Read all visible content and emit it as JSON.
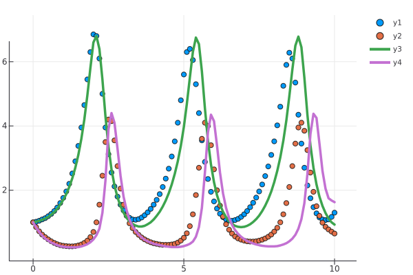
{
  "chart_data": {
    "type": "line",
    "title": "",
    "xlabel": "",
    "ylabel": "",
    "grid": true,
    "legend_position": "outside-right-top",
    "xlim": [
      -0.79,
      10.73
    ],
    "ylim": [
      -0.19,
      7.45
    ],
    "xticks": {
      "values": [
        0,
        5,
        10
      ],
      "labels": [
        "0",
        "5",
        "10"
      ]
    },
    "yticks": {
      "values": [
        2,
        4,
        6
      ],
      "labels": [
        "2",
        "4",
        "6"
      ]
    },
    "x": [
      0.0,
      0.1,
      0.2,
      0.3,
      0.4,
      0.5,
      0.6,
      0.7,
      0.8,
      0.9,
      1.0,
      1.1,
      1.2,
      1.3,
      1.4,
      1.5,
      1.6,
      1.7,
      1.8,
      1.9,
      2.0,
      2.1,
      2.2,
      2.3,
      2.4,
      2.5,
      2.6,
      2.7,
      2.8,
      2.9,
      3.0,
      3.1,
      3.2,
      3.3,
      3.4,
      3.5,
      3.6,
      3.7,
      3.8,
      3.9,
      4.0,
      4.1,
      4.2,
      4.3,
      4.4,
      4.5,
      4.6,
      4.7,
      4.8,
      4.9,
      5.0,
      5.1,
      5.2,
      5.3,
      5.4,
      5.5,
      5.6,
      5.7,
      5.8,
      5.9,
      6.0,
      6.1,
      6.2,
      6.3,
      6.4,
      6.5,
      6.6,
      6.7,
      6.8,
      6.9,
      7.0,
      7.1,
      7.2,
      7.3,
      7.4,
      7.5,
      7.6,
      7.7,
      7.8,
      7.9,
      8.0,
      8.1,
      8.2,
      8.3,
      8.4,
      8.5,
      8.6,
      8.7,
      8.8,
      8.9,
      9.0,
      9.1,
      9.2,
      9.3,
      9.4,
      9.5,
      9.6,
      9.7,
      9.8,
      9.9,
      10.0
    ],
    "series": [
      {
        "name": "y1",
        "mode": "markers",
        "color": "#009AFA",
        "marker_stroke": "#101010",
        "marker_size": 3.6,
        "values": [
          1.0,
          1.02,
          1.05,
          1.09,
          1.13,
          1.19,
          1.26,
          1.35,
          1.46,
          1.6,
          1.76,
          1.96,
          2.2,
          2.52,
          2.9,
          3.38,
          3.95,
          4.65,
          5.45,
          6.3,
          6.85,
          6.8,
          6.1,
          5.0,
          3.95,
          3.12,
          2.55,
          2.12,
          1.8,
          1.55,
          1.37,
          1.23,
          1.14,
          1.09,
          1.08,
          1.1,
          1.15,
          1.22,
          1.31,
          1.42,
          1.55,
          1.7,
          1.88,
          2.1,
          2.36,
          2.67,
          3.05,
          3.52,
          4.1,
          4.8,
          5.6,
          6.3,
          6.4,
          6.05,
          5.3,
          4.4,
          3.55,
          2.88,
          2.35,
          1.95,
          1.65,
          1.43,
          1.27,
          1.16,
          1.09,
          1.06,
          1.05,
          1.07,
          1.11,
          1.17,
          1.25,
          1.35,
          1.47,
          1.61,
          1.77,
          1.96,
          2.18,
          2.44,
          2.74,
          3.1,
          3.52,
          4.02,
          4.6,
          5.25,
          5.9,
          6.28,
          6.1,
          5.35,
          4.35,
          3.45,
          2.7,
          2.15,
          1.75,
          1.47,
          1.28,
          1.15,
          1.09,
          1.07,
          1.09,
          1.17,
          1.3
        ]
      },
      {
        "name": "y2",
        "mode": "markers",
        "color": "#E36F47",
        "marker_stroke": "#101010",
        "marker_size": 3.6,
        "values": [
          1.0,
          0.85,
          0.72,
          0.62,
          0.54,
          0.47,
          0.41,
          0.36,
          0.32,
          0.29,
          0.27,
          0.26,
          0.25,
          0.25,
          0.26,
          0.28,
          0.31,
          0.36,
          0.43,
          0.54,
          0.7,
          1.0,
          1.55,
          2.45,
          3.5,
          4.2,
          4.15,
          3.55,
          2.75,
          2.05,
          1.55,
          1.2,
          0.97,
          0.82,
          0.7,
          0.61,
          0.53,
          0.47,
          0.42,
          0.38,
          0.35,
          0.33,
          0.31,
          0.3,
          0.3,
          0.3,
          0.31,
          0.33,
          0.37,
          0.43,
          0.52,
          0.66,
          0.88,
          1.25,
          1.85,
          2.7,
          3.6,
          4.1,
          4.0,
          3.4,
          2.65,
          2.0,
          1.52,
          1.18,
          0.94,
          0.77,
          0.65,
          0.56,
          0.5,
          0.46,
          0.43,
          0.41,
          0.4,
          0.4,
          0.41,
          0.43,
          0.46,
          0.5,
          0.55,
          0.62,
          0.71,
          0.83,
          1.0,
          1.25,
          1.6,
          2.1,
          2.75,
          3.45,
          3.95,
          4.1,
          3.85,
          3.25,
          2.55,
          1.95,
          1.5,
          1.2,
          0.99,
          0.86,
          0.78,
          0.71,
          0.65
        ]
      },
      {
        "name": "y3",
        "mode": "line",
        "color": "#3DA44E",
        "line_width": 3.5,
        "values": [
          1.0,
          1.02,
          1.05,
          1.08,
          1.12,
          1.17,
          1.24,
          1.32,
          1.42,
          1.55,
          1.7,
          1.88,
          2.1,
          2.37,
          2.7,
          3.1,
          3.6,
          4.2,
          4.95,
          5.8,
          6.6,
          6.8,
          6.4,
          5.45,
          4.3,
          3.35,
          2.65,
          2.15,
          1.78,
          1.5,
          1.3,
          1.14,
          1.03,
          0.95,
          0.9,
          0.87,
          0.87,
          0.89,
          0.94,
          1.0,
          1.09,
          1.2,
          1.33,
          1.49,
          1.68,
          1.91,
          2.18,
          2.51,
          2.9,
          3.38,
          3.97,
          4.68,
          5.5,
          6.3,
          6.75,
          6.55,
          5.7,
          4.55,
          3.55,
          2.8,
          2.25,
          1.85,
          1.55,
          1.33,
          1.16,
          1.04,
          0.95,
          0.89,
          0.86,
          0.85,
          0.86,
          0.89,
          0.94,
          1.01,
          1.1,
          1.21,
          1.35,
          1.52,
          1.72,
          1.96,
          2.25,
          2.6,
          3.02,
          3.54,
          4.17,
          4.92,
          5.75,
          6.5,
          6.78,
          6.45,
          5.5,
          4.35,
          3.4,
          2.7,
          2.18,
          1.8,
          1.51,
          1.29,
          1.12,
          1.0,
          0.93
        ]
      },
      {
        "name": "y4",
        "mode": "line",
        "color": "#C371D2",
        "line_width": 3.5,
        "values": [
          1.0,
          0.84,
          0.7,
          0.59,
          0.5,
          0.43,
          0.37,
          0.33,
          0.29,
          0.26,
          0.24,
          0.23,
          0.22,
          0.22,
          0.22,
          0.23,
          0.25,
          0.28,
          0.32,
          0.38,
          0.47,
          0.6,
          0.8,
          1.3,
          2.3,
          3.9,
          4.4,
          4.1,
          3.3,
          2.45,
          1.8,
          1.38,
          1.08,
          0.88,
          0.73,
          0.62,
          0.53,
          0.46,
          0.41,
          0.37,
          0.33,
          0.31,
          0.29,
          0.27,
          0.25,
          0.24,
          0.23,
          0.23,
          0.23,
          0.24,
          0.26,
          0.29,
          0.33,
          0.4,
          0.55,
          0.85,
          1.45,
          2.55,
          3.8,
          4.35,
          4.15,
          3.4,
          2.55,
          1.9,
          1.45,
          1.14,
          0.92,
          0.76,
          0.64,
          0.55,
          0.48,
          0.42,
          0.38,
          0.34,
          0.31,
          0.29,
          0.27,
          0.26,
          0.25,
          0.25,
          0.25,
          0.26,
          0.28,
          0.31,
          0.35,
          0.41,
          0.49,
          0.61,
          0.8,
          1.1,
          1.6,
          2.5,
          3.75,
          4.38,
          4.25,
          3.45,
          2.6,
          2.05,
          1.75,
          1.68,
          1.63
        ]
      }
    ]
  },
  "styles": {
    "background": "#FFFFFF",
    "grid_color": "#E9E9E9",
    "axis_color": "#4A4A50",
    "tick_label_color": "#36363B",
    "legend_text_color": "#36363B"
  },
  "legend": {
    "entries": [
      "y1",
      "y2",
      "y3",
      "y4"
    ]
  }
}
